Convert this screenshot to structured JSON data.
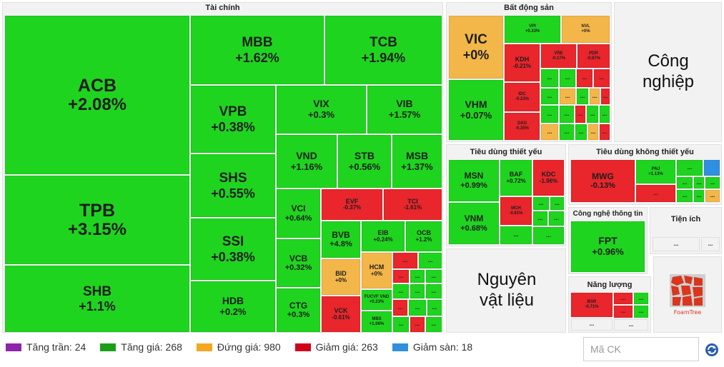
{
  "sectors": {
    "finance": "Tài chính",
    "realestate": "Bất động sản",
    "industrial": "Công nghiệp",
    "staples": "Tiêu dùng thiết yếu",
    "discretionary": "Tiêu dùng không thiết yếu",
    "tech": "Công nghệ thông tin",
    "utilities": "Tiện ích",
    "materials": "Nguyên vật liệu",
    "energy": "Năng lượng"
  },
  "more": "...",
  "tiles": {
    "acb": {
      "s": "ACB",
      "c": "+2.08%"
    },
    "tpb": {
      "s": "TPB",
      "c": "+3.15%"
    },
    "shb": {
      "s": "SHB",
      "c": "+1.1%"
    },
    "mbb": {
      "s": "MBB",
      "c": "+1.62%"
    },
    "tcb": {
      "s": "TCB",
      "c": "+1.94%"
    },
    "vpb": {
      "s": "VPB",
      "c": "+0.38%"
    },
    "vix": {
      "s": "VIX",
      "c": "+0.3%"
    },
    "vib": {
      "s": "VIB",
      "c": "+1.57%"
    },
    "shs": {
      "s": "SHS",
      "c": "+0.55%"
    },
    "vnd": {
      "s": "VND",
      "c": "+1.16%"
    },
    "stb": {
      "s": "STB",
      "c": "+0.56%"
    },
    "msb": {
      "s": "MSB",
      "c": "+1.37%"
    },
    "ssi": {
      "s": "SSI",
      "c": "+0.38%"
    },
    "vci": {
      "s": "VCI",
      "c": "+0.64%"
    },
    "evf": {
      "s": "EVF",
      "c": "-0.37%"
    },
    "tci": {
      "s": "TCI",
      "c": "-1.61%"
    },
    "bvb": {
      "s": "BVB",
      "c": "+4.8%"
    },
    "eib": {
      "s": "EIB",
      "c": "+0.24%"
    },
    "ocb": {
      "s": "OCB",
      "c": "+1.2%"
    },
    "vcb": {
      "s": "VCB",
      "c": "+0.32%"
    },
    "bid": {
      "s": "BID",
      "c": "+0%"
    },
    "hcm": {
      "s": "HCM",
      "c": "+0%"
    },
    "fucvf": {
      "s": "FUCVF VND",
      "c": "+0.23%"
    },
    "hdb": {
      "s": "HDB",
      "c": "+0.2%"
    },
    "ctg": {
      "s": "CTG",
      "c": "+0.3%"
    },
    "vck": {
      "s": "VCK",
      "c": "-0.61%"
    },
    "mbs": {
      "s": "MBS",
      "c": "+1.06%"
    },
    "vic": {
      "s": "VIC",
      "c": "+0%"
    },
    "vpi": {
      "s": "VPI",
      "c": "+0.33%"
    },
    "nvl": {
      "s": "NVL",
      "c": "+0%"
    },
    "kdh": {
      "s": "KDH",
      "c": "-0.21%"
    },
    "vre": {
      "s": "VRE",
      "c": "-0.17%"
    },
    "pdr": {
      "s": "PDR",
      "c": "-0.87%"
    },
    "vhm": {
      "s": "VHM",
      "c": "+0.07%"
    },
    "idc": {
      "s": "IDC",
      "c": "-0.23%"
    },
    "dxg": {
      "s": "DXG",
      "c": "-0.35%"
    },
    "msn": {
      "s": "MSN",
      "c": "+0.99%"
    },
    "baf": {
      "s": "BAF",
      "c": "+0.72%"
    },
    "kdc": {
      "s": "KDC",
      "c": "-1.96%"
    },
    "vnm": {
      "s": "VNM",
      "c": "+0.68%"
    },
    "mch": {
      "s": "MCH",
      "c": "-0.61%"
    },
    "mwg": {
      "s": "MWG",
      "c": "-0.13%"
    },
    "pnj": {
      "s": "PNJ",
      "c": "+1.13%"
    },
    "fpt": {
      "s": "FPT",
      "c": "+0.96%"
    },
    "bsr": {
      "s": "BSR",
      "c": "-0.71%"
    }
  },
  "legend": [
    {
      "label": "Tăng trần: 24",
      "color": "#8e24aa"
    },
    {
      "label": "Tăng giá: 268",
      "color": "#1a9e1a"
    },
    {
      "label": "Đứng giá: 980",
      "color": "#f5a623"
    },
    {
      "label": "Giảm giá: 263",
      "color": "#d0021b"
    },
    {
      "label": "Giảm sàn: 18",
      "color": "#2f8fe0"
    }
  ],
  "search": {
    "placeholder": "Mã CK"
  },
  "logo": {
    "text": "FoamTree"
  },
  "icons": {
    "refresh": "refresh-icon",
    "logo": "foamtree-logo"
  }
}
